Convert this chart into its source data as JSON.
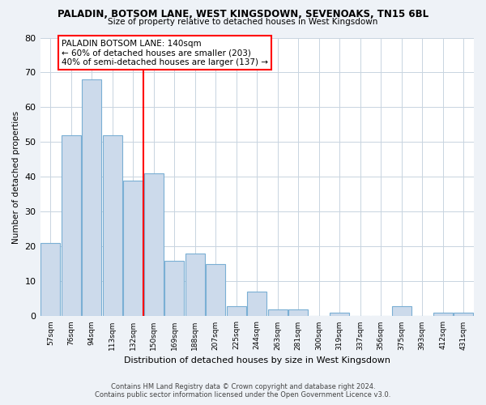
{
  "title": "PALADIN, BOTSOM LANE, WEST KINGSDOWN, SEVENOAKS, TN15 6BL",
  "subtitle": "Size of property relative to detached houses in West Kingsdown",
  "xlabel": "Distribution of detached houses by size in West Kingsdown",
  "ylabel": "Number of detached properties",
  "categories": [
    "57sqm",
    "76sqm",
    "94sqm",
    "113sqm",
    "132sqm",
    "150sqm",
    "169sqm",
    "188sqm",
    "207sqm",
    "225sqm",
    "244sqm",
    "263sqm",
    "281sqm",
    "300sqm",
    "319sqm",
    "337sqm",
    "356sqm",
    "375sqm",
    "393sqm",
    "412sqm",
    "431sqm"
  ],
  "values": [
    21,
    52,
    68,
    52,
    39,
    41,
    16,
    18,
    15,
    3,
    7,
    2,
    2,
    0,
    1,
    0,
    0,
    3,
    0,
    1,
    1
  ],
  "bar_color": "#ccdaeb",
  "bar_edge_color": "#7aafd4",
  "annotation_title": "PALADIN BOTSOM LANE: 140sqm",
  "annotation_line1": "← 60% of detached houses are smaller (203)",
  "annotation_line2": "40% of semi-detached houses are larger (137) →",
  "ylim": [
    0,
    80
  ],
  "yticks": [
    0,
    10,
    20,
    30,
    40,
    50,
    60,
    70,
    80
  ],
  "footer_line1": "Contains HM Land Registry data © Crown copyright and database right 2024.",
  "footer_line2": "Contains public sector information licensed under the Open Government Licence v3.0.",
  "background_color": "#eef2f7",
  "plot_bg_color": "#ffffff",
  "grid_color": "#c8d4e0"
}
